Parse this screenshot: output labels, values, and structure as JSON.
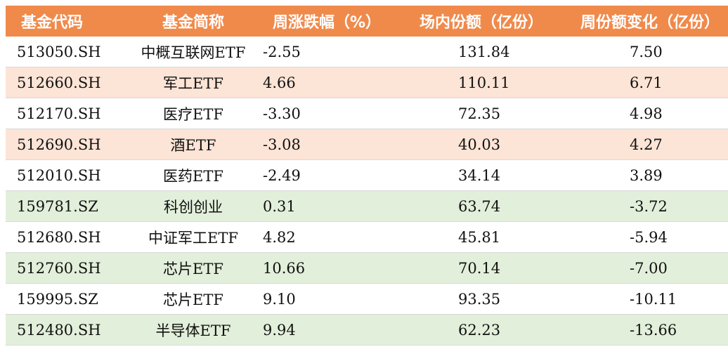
{
  "table": {
    "headers": [
      "基金代码",
      "基金简称",
      "周涨跌幅（%）",
      "场内份额（亿份）",
      "周份额变化（亿份）"
    ],
    "rows": [
      {
        "code": "513050.SH",
        "name": "中概互联网ETF",
        "weekly_change_pct": "-2.55",
        "shares": "131.84",
        "share_change": "7.50",
        "band": "white"
      },
      {
        "code": "512660.SH",
        "name": "军工ETF",
        "weekly_change_pct": "4.66",
        "shares": "110.11",
        "share_change": "6.71",
        "band": "orange"
      },
      {
        "code": "512170.SH",
        "name": "医疗ETF",
        "weekly_change_pct": "-3.30",
        "shares": "72.35",
        "share_change": "4.98",
        "band": "white"
      },
      {
        "code": "512690.SH",
        "name": "酒ETF",
        "weekly_change_pct": "-3.08",
        "shares": "40.03",
        "share_change": "4.27",
        "band": "orange"
      },
      {
        "code": "512010.SH",
        "name": "医药ETF",
        "weekly_change_pct": "-2.49",
        "shares": "34.14",
        "share_change": "3.89",
        "band": "white"
      },
      {
        "code": "159781.SZ",
        "name": "科创创业",
        "weekly_change_pct": "0.31",
        "shares": "63.74",
        "share_change": "-3.72",
        "band": "green"
      },
      {
        "code": "512680.SH",
        "name": "中证军工ETF",
        "weekly_change_pct": "4.82",
        "shares": "45.81",
        "share_change": "-5.94",
        "band": "white"
      },
      {
        "code": "512760.SH",
        "name": "芯片ETF",
        "weekly_change_pct": "10.66",
        "shares": "70.14",
        "share_change": "-7.00",
        "band": "green"
      },
      {
        "code": "159995.SZ",
        "name": "芯片ETF",
        "weekly_change_pct": "9.10",
        "shares": "93.35",
        "share_change": "-10.11",
        "band": "white"
      },
      {
        "code": "512480.SH",
        "name": "半导体ETF",
        "weekly_change_pct": "9.94",
        "shares": "62.23",
        "share_change": "-13.66",
        "band": "green"
      }
    ]
  },
  "colors": {
    "header_bg": "#f08a4b",
    "band_white": "#ffffff",
    "band_orange": "#fce4d6",
    "band_green": "#e2efda"
  }
}
